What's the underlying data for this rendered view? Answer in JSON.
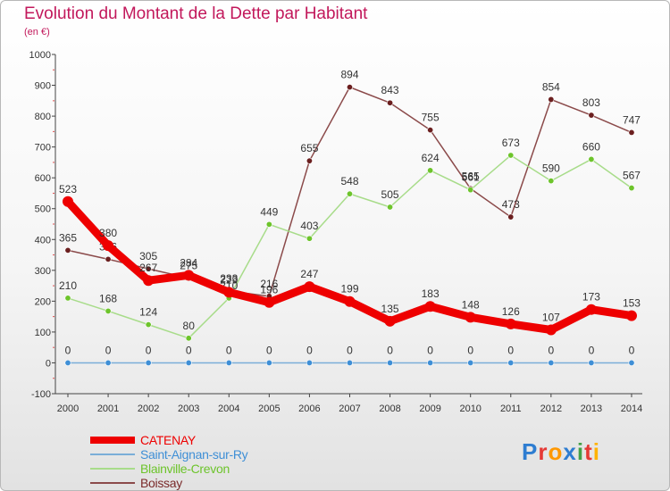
{
  "header": {
    "title": "Evolution du Montant de la Dette par Habitant",
    "subtitle": "(en €)"
  },
  "logo": {
    "text": "Proxiti",
    "colors": [
      "#2e7dd1",
      "#e53935",
      "#ff9800",
      "#2e7dd1",
      "#43a047",
      "#e53935",
      "#ffb300"
    ]
  },
  "chart_data": {
    "type": "line",
    "title": "Evolution du Montant de la Dette par Habitant",
    "ylabel": "(en €)",
    "ylim": [
      -100,
      1000
    ],
    "yticks": [
      -100,
      0,
      100,
      200,
      300,
      400,
      500,
      600,
      700,
      800,
      900,
      1000
    ],
    "grid": false,
    "legend": "bottom-left",
    "x": [
      "2000",
      "2001",
      "2002",
      "2003",
      "2004",
      "2005",
      "2006",
      "2007",
      "2008",
      "2009",
      "2010",
      "2011",
      "2012",
      "2013",
      "2014"
    ],
    "series": [
      {
        "name": "Boissay",
        "color": "#6b1f1f",
        "line_color": "#8b4a4a",
        "values": [
          365,
          336,
          305,
          275,
          233,
          216,
          655,
          894,
          843,
          755,
          565,
          473,
          854,
          803,
          747
        ]
      },
      {
        "name": "Blainville-Crevon",
        "color": "#6dc42b",
        "line_color": "#a8dc8a",
        "values": [
          210,
          168,
          124,
          80,
          210,
          449,
          403,
          548,
          505,
          624,
          561,
          673,
          590,
          660,
          567
        ]
      },
      {
        "name": "Saint-Aignan-sur-Ry",
        "color": "#3f8fd6",
        "line_color": "#7aaed8",
        "values": [
          0,
          0,
          0,
          0,
          0,
          0,
          0,
          0,
          0,
          0,
          0,
          0,
          0,
          0,
          0
        ]
      },
      {
        "name": "CATENAY",
        "color": "#ee0000",
        "line_color": "#ee0000",
        "values": [
          523,
          380,
          267,
          284,
          229,
          196,
          247,
          199,
          135,
          183,
          148,
          126,
          107,
          173,
          153
        ]
      }
    ],
    "legend_order": [
      "CATENAY",
      "Saint-Aignan-sur-Ry",
      "Blainville-Crevon",
      "Boissay"
    ]
  }
}
